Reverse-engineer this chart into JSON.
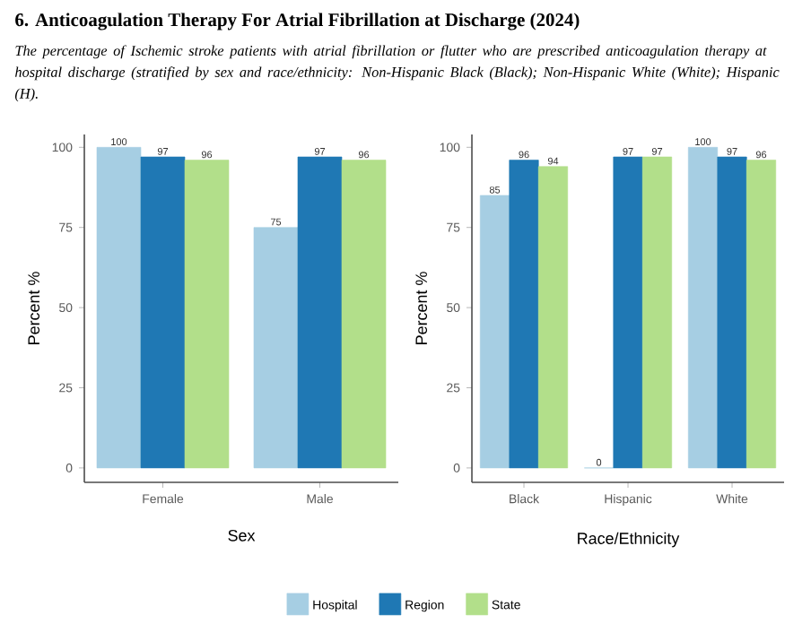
{
  "chart_data": [
    {
      "type": "bar",
      "title": "6. Anticoagulation Therapy For Atrial Fibrillation at Discharge (2024)",
      "subtitle": "The percentage of Ischemic stroke patients with atrial fibrillation or flutter who are prescribed anticoagulation therapy at hospital discharge (stratified by sex and race/ethnicity:  Non-Hispanic Black (Black); Non-Hispanic White (White); Hispanic (H).",
      "categories": [
        "Female",
        "Male"
      ],
      "xlabel": "Sex",
      "ylabel": "Percent %",
      "ylim": [
        -4.5,
        104
      ],
      "yticks": [
        0,
        25,
        50,
        75,
        100
      ],
      "data_labels": true,
      "series": [
        {
          "color": "#a6cee3",
          "values": [
            100,
            75
          ]
        },
        {
          "color": "#1f78b4",
          "values": [
            97,
            97
          ]
        },
        {
          "color": "#b2df8a",
          "values": [
            96,
            96
          ]
        }
      ]
    },
    {
      "type": "bar",
      "categories": [
        "Black",
        "Hispanic",
        "White"
      ],
      "xlabel": "Race/Ethnicity",
      "ylabel": "Percent %",
      "ylim": [
        -4.5,
        104
      ],
      "yticks": [
        0,
        25,
        50,
        75,
        100
      ],
      "data_labels": true,
      "legend": "bottom",
      "series": [
        {
          "name": "Hospital",
          "color": "#a6cee3",
          "values": [
            85,
            0,
            100
          ]
        },
        {
          "name": "Region",
          "color": "#1f78b4",
          "values": [
            96,
            97,
            97
          ]
        },
        {
          "name": "State",
          "color": "#b2df8a",
          "values": [
            94,
            97,
            96
          ]
        }
      ]
    }
  ]
}
